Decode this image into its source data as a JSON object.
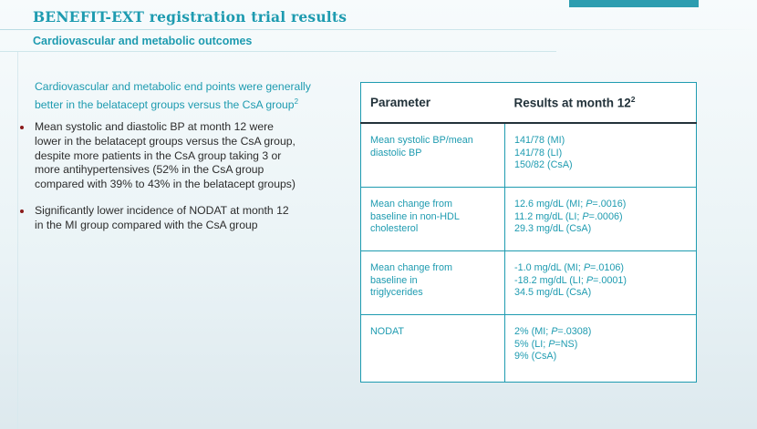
{
  "header": {
    "title": "BENEFIT-EXT registration trial results",
    "subtitle": "Cardiovascular and metabolic outcomes"
  },
  "intro": {
    "line1": "Cardiovascular and metabolic end points were generally",
    "line2_a": "better in the belatacept groups versus the CsA group",
    "line2_sup": "2"
  },
  "bullets": [
    {
      "lines": [
        "Mean systolic and diastolic BP at month 12 were",
        "lower in the belatacept groups versus the CsA group,",
        "despite more patients in the CsA group taking 3 or",
        "more antihypertensives (52% in the CsA group",
        "compared with 39% to 43% in the belatacept groups)"
      ]
    },
    {
      "lines": [
        "Significantly lower incidence of NODAT at month 12",
        "in the MI group compared with the CsA group"
      ]
    }
  ],
  "table": {
    "header_param": "Parameter",
    "header_results": "Results at month 12",
    "header_results_sup": "2",
    "rows": [
      {
        "param": [
          "Mean systolic BP/mean",
          "diastolic BP"
        ],
        "results": [
          "141/78 (MI)",
          "141/78 (LI)",
          "150/82 (CsA)"
        ]
      },
      {
        "param": [
          "Mean change from",
          "baseline in non-HDL",
          "cholesterol"
        ],
        "results": [
          "12.6 mg/dL (MI; P=.0016)",
          "11.2 mg/dL (LI; P=.0006)",
          "29.3 mg/dL (CsA)"
        ]
      },
      {
        "param": [
          "Mean change from",
          "baseline in",
          "triglycerides"
        ],
        "results": [
          "-1.0 mg/dL (MI; P=.0106)",
          "-18.2 mg/dL (LI; P=.0001)",
          "34.5 mg/dL (CsA)"
        ]
      },
      {
        "param": [
          "NODAT"
        ],
        "results": [
          "2% (MI; P=.0308)",
          "5% (LI; P=NS)",
          "9% (CsA)"
        ]
      }
    ]
  },
  "colors": {
    "accent": "#1e9bb0",
    "bullet": "#8b1a1a",
    "body_text": "#2c2c2c"
  }
}
